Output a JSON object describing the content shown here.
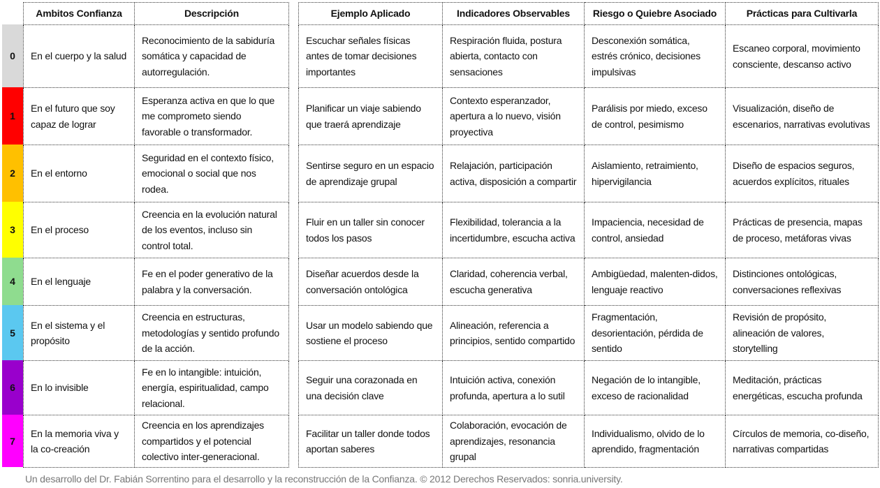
{
  "headers_left": [
    "Ambitos Confianza",
    "Descripción"
  ],
  "headers_right": [
    "Ejemplo Aplicado",
    "Indicadores Observables",
    "Riesgo o Quiebre Asociado",
    "Prácticas para Cultivarla"
  ],
  "rows": [
    {
      "level": "0",
      "color": "#d9d9d9",
      "cells": [
        "En el cuerpo y la salud",
        "Reconocimiento de la sabiduría somática y capacidad de autorregulación.",
        "Escuchar señales físicas antes de tomar decisiones importantes",
        "Respiración fluida, postura abierta, contacto con sensaciones",
        "Desconexión somática, estrés crónico, decisiones impulsivas",
        "Escaneo corporal, movimiento consciente, descanso activo"
      ]
    },
    {
      "level": "1",
      "color": "#ff0000",
      "cells": [
        "En el futuro que soy capaz de lograr",
        "Esperanza activa en que lo que me comprometo siendo favorable o transformador.",
        "Planificar un viaje sabiendo que traerá aprendizaje",
        "Contexto esperanzador, apertura a lo nuevo, visión proyectiva",
        "Parálisis por miedo, exceso de control, pesimismo",
        "Visualización, diseño de escenarios, narrativas evolutivas"
      ]
    },
    {
      "level": "2",
      "color": "#ffc000",
      "cells": [
        "En el entorno",
        "Seguridad en el contexto físico, emocional o social que nos rodea.",
        "Sentirse seguro en un espacio de aprendizaje grupal",
        "Relajación, participación activa, disposición a compartir",
        "Aislamiento, retraimiento, hipervigilancia",
        "Diseño de espacios seguros, acuerdos explícitos, rituales"
      ]
    },
    {
      "level": "3",
      "color": "#ffff00",
      "cells": [
        "En el proceso",
        "Creencia en la evolución natural de los eventos, incluso sin control total.",
        "Fluir en un taller sin conocer todos los pasos",
        "Flexibilidad, tolerancia a la incertidumbre, escucha activa",
        "Impaciencia, necesidad de control, ansiedad",
        "Prácticas de presencia, mapas de proceso, metáforas vivas"
      ]
    },
    {
      "level": "4",
      "color": "#8fdc8f",
      "cells": [
        "En el lenguaje",
        "Fe en el poder generativo de la palabra y la conversación.",
        "Diseñar acuerdos desde la conversación ontológica",
        "Claridad, coherencia verbal, escucha generativa",
        "Ambigüedad, malenten-didos, lenguaje reactivo",
        "Distinciones ontológicas, conversaciones reflexivas"
      ]
    },
    {
      "level": "5",
      "color": "#5bc8f0",
      "cells": [
        "En el sistema y el propósito",
        "Creencia en estructuras, metodologías y sentido profundo de la acción.",
        "Usar un modelo sabiendo que sostiene el proceso",
        "Alineación, referencia a principios, sentido compartido",
        "Fragmentación, desorientación, pérdida de sentido",
        "Revisión de propósito, alineación de valores, storytelling"
      ]
    },
    {
      "level": "6",
      "color": "#9900cc",
      "cells": [
        "En lo invisible",
        "Fe en lo intangible: intuición, energía, espiritualidad, campo relacional.",
        "Seguir una corazonada en una decisión clave",
        "Intuición activa, conexión profunda, apertura a lo sutil",
        "Negación de lo intangible, exceso de racionalidad",
        "Meditación, prácticas energéticas, escucha profunda"
      ]
    },
    {
      "level": "7",
      "color": "#ff00ff",
      "cells": [
        "En la memoria viva y la co-creación",
        "Creencia en los aprendizajes compartidos y el potencial colectivo inter-generacional.",
        "Facilitar un taller donde todos aportan saberes",
        "Colaboración, evocación de aprendizajes, resonancia grupal",
        "Individualismo, olvido de lo aprendido, fragmentación",
        "Círculos de memoria, co-diseño, narrativas compartidas"
      ]
    }
  ],
  "footer": "Un desarrollo del Dr. Fabián Sorrentino para el desarrollo y la reconstrucción de la Confianza.  © 2012 Derechos Reservados: sonria.university."
}
